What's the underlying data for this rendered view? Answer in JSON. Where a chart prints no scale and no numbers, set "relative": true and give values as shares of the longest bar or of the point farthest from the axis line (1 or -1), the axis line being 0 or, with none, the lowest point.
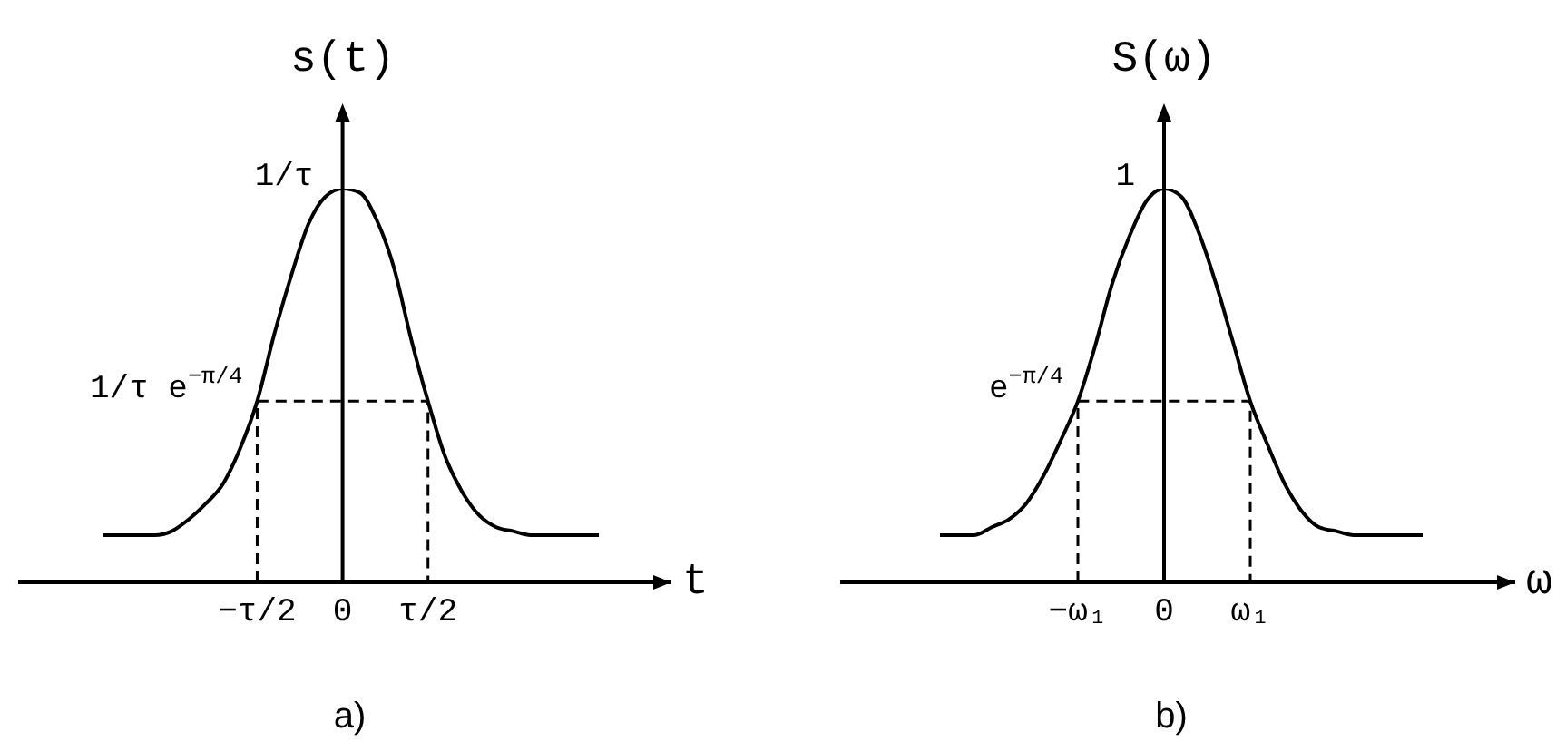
{
  "chart_data": [
    {
      "type": "line",
      "title": "a)",
      "xlabel": "t",
      "ylabel": "s(t)",
      "relative": true,
      "categories": [
        null,
        null,
        null,
        null,
        null,
        null,
        null,
        null,
        null,
        "−τ/2",
        null,
        null,
        null,
        null,
        "0",
        null,
        null,
        null,
        null,
        "τ/2",
        null,
        null,
        null,
        null,
        null,
        null,
        null,
        null,
        null,
        null
      ],
      "series": [
        {
          "color": "#000000",
          "values": [
            0.12,
            0.12,
            0.12,
            0.12,
            0.13,
            0.16,
            0.2,
            0.25,
            0.34,
            0.46,
            0.63,
            0.78,
            0.91,
            0.98,
            1,
            0.99,
            0.92,
            0.8,
            0.62,
            0.46,
            0.32,
            0.23,
            0.17,
            0.14,
            0.13,
            0.12,
            0.12,
            0.12,
            0.12,
            0.12
          ]
        },
        {
          "color": "#000000",
          "line_style": "dashed",
          "x": [
            "−τ/2",
            "−τ/2",
            "τ/2",
            "τ/2"
          ],
          "values": [
            0,
            0.46,
            0.46,
            0
          ]
        }
      ],
      "annotations": [
        {
          "text": "1/τ",
          "x": "0",
          "y": 1
        },
        {
          "text": "1/τ e$^{−π/4}$",
          "x": "−τ/2",
          "y": 0.46
        }
      ]
    },
    {
      "type": "line",
      "title": "b)",
      "xlabel": "ω",
      "ylabel": "S(ω)",
      "relative": true,
      "categories": [
        null,
        null,
        null,
        null,
        null,
        null,
        null,
        null,
        "−ω₁",
        null,
        null,
        null,
        null,
        "0",
        null,
        null,
        null,
        null,
        "ω₁",
        null,
        null,
        null,
        null,
        null,
        null,
        null,
        null,
        null,
        null
      ],
      "series": [
        {
          "color": "#000000",
          "values": [
            0.12,
            0.12,
            0.12,
            0.14,
            0.16,
            0.2,
            0.27,
            0.36,
            0.46,
            0.6,
            0.76,
            0.88,
            0.97,
            1,
            0.98,
            0.89,
            0.76,
            0.61,
            0.46,
            0.35,
            0.25,
            0.18,
            0.14,
            0.13,
            0.12,
            0.12,
            0.12,
            0.12,
            0.12
          ]
        },
        {
          "color": "#000000",
          "line_style": "dashed",
          "x": [
            "−ω₁",
            "−ω₁",
            "ω₁",
            "ω₁"
          ],
          "values": [
            0,
            0.46,
            0.46,
            0
          ]
        }
      ],
      "annotations": [
        {
          "text": "1",
          "x": "0",
          "y": 1
        },
        {
          "text": "e$^{−π/4}$",
          "x": "−ω₁",
          "y": 0.46
        }
      ]
    }
  ]
}
